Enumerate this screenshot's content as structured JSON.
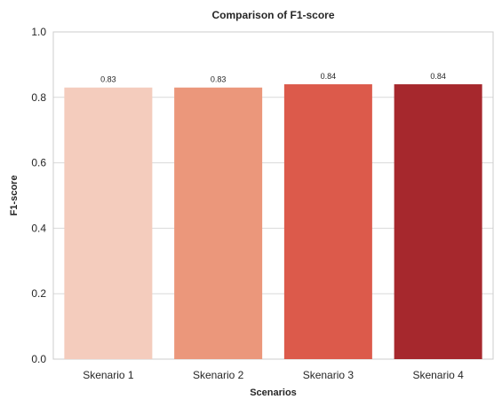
{
  "chart_data": {
    "type": "bar",
    "title": "Comparison of F1-score",
    "xlabel": "Scenarios",
    "ylabel": "F1-score",
    "categories": [
      "Skenario 1",
      "Skenario 2",
      "Skenario 3",
      "Skenario 4"
    ],
    "values": [
      0.83,
      0.83,
      0.84,
      0.84
    ],
    "data_labels": [
      "0.83",
      "0.83",
      "0.84",
      "0.84"
    ],
    "colors": [
      "#f4ccbd",
      "#eb977b",
      "#dc5a4b",
      "#a6282d"
    ],
    "ylim": [
      0,
      1
    ],
    "yticks": [
      0.0,
      0.2,
      0.4,
      0.6,
      0.8,
      1.0
    ],
    "ytick_labels": [
      "0.0",
      "0.2",
      "0.4",
      "0.6",
      "0.8",
      "1.0"
    ],
    "grid": true,
    "grid_axis": "y",
    "legend": "none"
  }
}
